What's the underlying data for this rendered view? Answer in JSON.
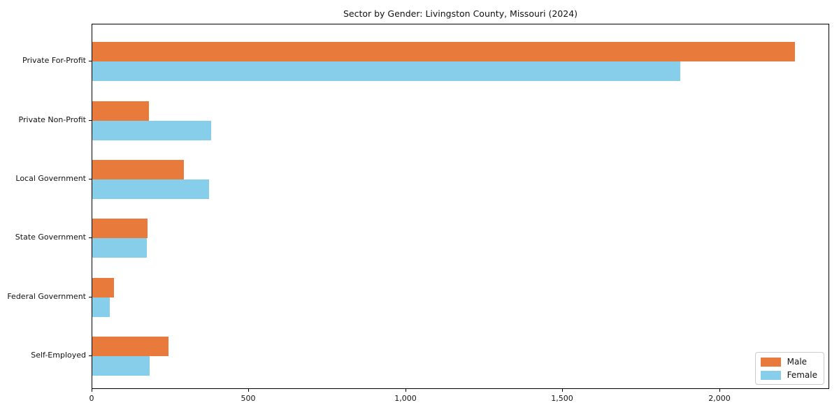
{
  "chart_data": {
    "type": "bar",
    "orientation": "horizontal",
    "title": "Sector by Gender: Livingston County, Missouri (2024)",
    "categories": [
      "Private For-Profit",
      "Private Non-Profit",
      "Local Government",
      "State Government",
      "Federal Government",
      "Self-Employed"
    ],
    "series": [
      {
        "name": "Male",
        "color": "#e87a3c",
        "values": [
          2238,
          181,
          291,
          176,
          68,
          243
        ]
      },
      {
        "name": "Female",
        "color": "#87ceeb",
        "values": [
          1873,
          379,
          371,
          174,
          55,
          183
        ]
      }
    ],
    "xlabel": "",
    "ylabel": "",
    "xlim": [
      0,
      2350
    ],
    "xticks": [
      0,
      500,
      1000,
      1500,
      2000
    ],
    "xtick_labels": [
      "0",
      "500",
      "1,000",
      "1,500",
      "2,000"
    ],
    "grid": false,
    "legend": {
      "position": "lower-right",
      "entries": [
        "Male",
        "Female"
      ]
    },
    "colors": {
      "background": "#ffffff",
      "axis": "#000000",
      "text": "#111111",
      "legend_border": "#cccccc"
    }
  }
}
